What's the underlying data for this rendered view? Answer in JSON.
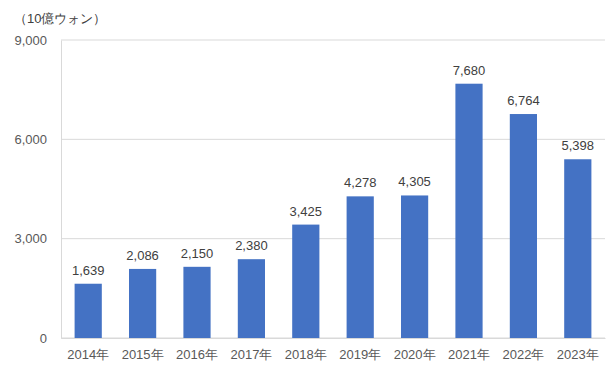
{
  "chart_data": {
    "type": "bar",
    "y_label": "（10億ウォン）",
    "categories": [
      "2014年",
      "2015年",
      "2016年",
      "2017年",
      "2018年",
      "2019年",
      "2020年",
      "2021年",
      "2022年",
      "2023年"
    ],
    "values": [
      1639,
      2086,
      2150,
      2380,
      3425,
      4278,
      4305,
      7680,
      6764,
      5398
    ],
    "value_labels": [
      "1,639",
      "2,086",
      "2,150",
      "2,380",
      "3,425",
      "4,278",
      "4,305",
      "7,680",
      "6,764",
      "5,398"
    ],
    "color": "#4472c4",
    "ylim": [
      0,
      9000
    ],
    "yticks": [
      0,
      {
        "value": 3000,
        "label": "3,000"
      },
      {
        "value": 6000,
        "label": "6,000"
      },
      {
        "value": 9000,
        "label": "9,000"
      }
    ],
    "grid": true,
    "data_labels": true
  }
}
